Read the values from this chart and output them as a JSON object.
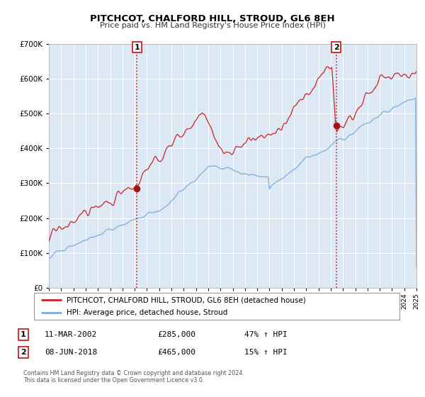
{
  "title": "PITCHCOT, CHALFORD HILL, STROUD, GL6 8EH",
  "subtitle": "Price paid vs. HM Land Registry's House Price Index (HPI)",
  "legend_line1": "PITCHCOT, CHALFORD HILL, STROUD, GL6 8EH (detached house)",
  "legend_line2": "HPI: Average price, detached house, Stroud",
  "sale1_date": "11-MAR-2002",
  "sale1_price": "£285,000",
  "sale1_hpi": "47% ↑ HPI",
  "sale1_year": 2002.19,
  "sale1_value": 285000,
  "sale2_date": "08-JUN-2018",
  "sale2_price": "£465,000",
  "sale2_hpi": "15% ↑ HPI",
  "sale2_year": 2018.44,
  "sale2_value": 465000,
  "footer_line1": "Contains HM Land Registry data © Crown copyright and database right 2024.",
  "footer_line2": "This data is licensed under the Open Government Licence v3.0.",
  "red_color": "#cc2222",
  "blue_color": "#7aade0",
  "background_color": "#dce9f5",
  "plot_bg_color": "#ffffff",
  "marker_color": "#aa1111",
  "dashed_line_color": "#cc2222",
  "ylim_min": 0,
  "ylim_max": 700000,
  "xmin": 1995,
  "xmax": 2025
}
